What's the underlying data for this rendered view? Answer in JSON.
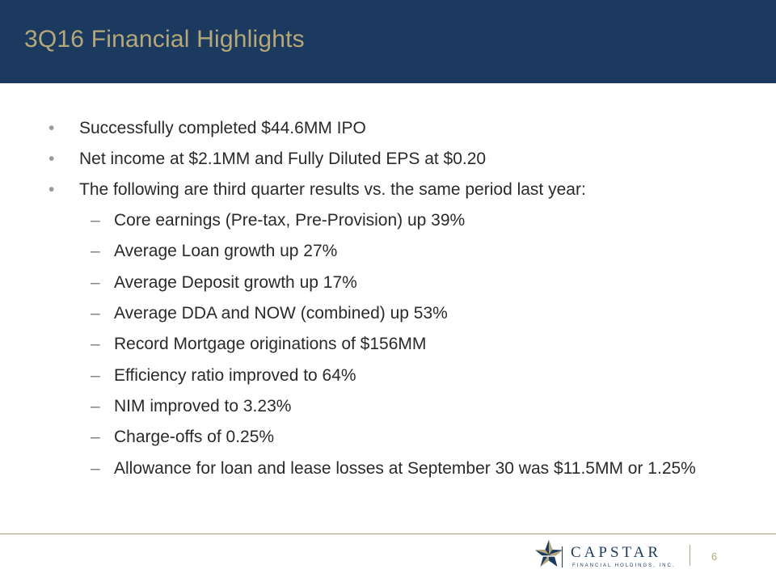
{
  "slide": {
    "title": "3Q16 Financial Highlights",
    "page_number": "6"
  },
  "bullets": [
    "Successfully completed $44.6MM IPO",
    "Net income at $2.1MM and Fully Diluted EPS at $0.20",
    "The following are third quarter results vs. the same period last year:"
  ],
  "sub_bullets": [
    "Core earnings (Pre-tax, Pre-Provision) up 39%",
    "Average Loan growth up 27%",
    "Average Deposit growth up 17%",
    "Average DDA and NOW (combined) up 53%",
    "Record Mortgage originations of $156MM",
    "Efficiency ratio improved to 64%",
    "NIM improved to 3.23%",
    "Charge-offs of 0.25%",
    "Allowance for loan and lease losses at September 30 was $11.5MM or 1.25%"
  ],
  "markers": {
    "bullet": "•",
    "sub_bullet": "–"
  },
  "logo": {
    "name": "CAPSTAR",
    "subtitle": "FINANCIAL HOLDINGS, INC."
  },
  "colors": {
    "header": "#1c3a5f",
    "title": "#b5a878",
    "accent_gold": "#b5a878"
  }
}
